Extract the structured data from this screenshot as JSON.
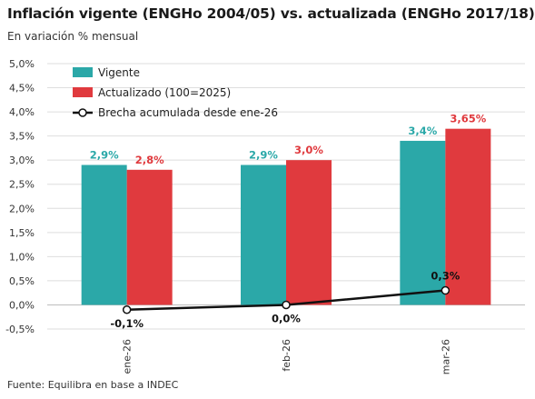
{
  "title": "Inflación vigente (ENGHo 2004/05) vs. actualizada (ENGHo 2017/18)",
  "subtitle": "En variación % mensual",
  "source": "Fuente: Equilibra en base a INDEC",
  "colors": {
    "vigente": "#2ba8a8",
    "actualizado": "#e03a3e",
    "brecha": "#111111",
    "grid": "#dedede"
  },
  "chart_data": {
    "type": "bar",
    "categories": [
      "ene-26",
      "feb-26",
      "mar-26"
    ],
    "series": [
      {
        "name": "Vigente",
        "kind": "bar",
        "values": [
          2.9,
          2.9,
          3.4
        ],
        "labels": [
          "2,9%",
          "2,9%",
          "3,4%"
        ]
      },
      {
        "name": "Actualizado (100=2025)",
        "kind": "bar",
        "values": [
          2.8,
          3.0,
          3.65
        ],
        "labels": [
          "2,8%",
          "3,0%",
          "3,65%"
        ]
      },
      {
        "name": "Brecha acumulada desde ene-26",
        "kind": "line",
        "values": [
          -0.1,
          0.0,
          0.3
        ],
        "labels": [
          "-0,1%",
          "0,0%",
          "0,3%"
        ]
      }
    ],
    "ylim": [
      -0.5,
      5.0
    ],
    "yticks": [
      -0.5,
      0.0,
      0.5,
      1.0,
      1.5,
      2.0,
      2.5,
      3.0,
      3.5,
      4.0,
      4.5,
      5.0
    ],
    "ytick_labels": [
      "-0,5%",
      "0,0%",
      "0,5%",
      "1,0%",
      "1,5%",
      "2,0%",
      "2,5%",
      "3,0%",
      "3,5%",
      "4,0%",
      "4,5%",
      "5,0%"
    ],
    "grid": true,
    "legend": "top-left"
  }
}
